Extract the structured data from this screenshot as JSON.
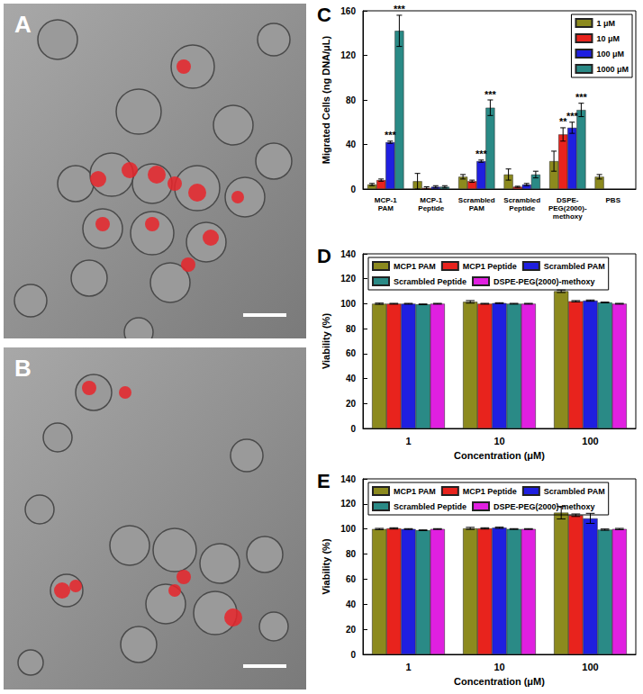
{
  "images": [
    {
      "panel": "A"
    },
    {
      "panel": "B"
    }
  ],
  "chart_data": [
    {
      "type": "bar",
      "panel": "C",
      "ylabel": "Migrated Cells (ng DNA/μL)",
      "categories": [
        "MCP-1\nPAM",
        "MCP-1\nPeptide",
        "Scrambled\nPAM",
        "Scrambled\nPeptide",
        "DSPE-\nPEG(2000)-\nmethoxy",
        "PBS"
      ],
      "series": [
        {
          "name": "1 μM",
          "color": "#8c8a1e",
          "values": [
            4,
            7,
            11,
            13,
            25,
            11
          ],
          "errors": [
            1,
            7,
            2,
            5,
            9,
            2
          ],
          "significance": [
            null,
            null,
            null,
            null,
            null,
            null
          ]
        },
        {
          "name": "10 μM",
          "color": "#e8231d",
          "values": [
            8,
            1,
            7,
            2,
            49,
            null
          ],
          "errors": [
            1,
            1,
            1,
            0.5,
            6,
            null
          ],
          "significance": [
            null,
            null,
            null,
            null,
            "**",
            null
          ]
        },
        {
          "name": "100 μM",
          "color": "#1f1fe0",
          "values": [
            42,
            2,
            25,
            4,
            55,
            null
          ],
          "errors": [
            1,
            1,
            1,
            1,
            5,
            null
          ],
          "significance": [
            "***",
            null,
            "***",
            null,
            "***",
            null
          ]
        },
        {
          "name": "1000 μM",
          "color": "#2a8a86",
          "values": [
            142,
            2,
            73,
            13,
            71,
            null
          ],
          "errors": [
            14,
            1,
            7,
            3,
            6,
            null
          ],
          "significance": [
            "***",
            null,
            "***",
            null,
            "***",
            null
          ]
        }
      ],
      "ylim": [
        0,
        160
      ],
      "yticks": [
        0,
        40,
        80,
        120,
        160
      ],
      "grid": false,
      "legend": "upper right"
    },
    {
      "type": "bar",
      "panel": "D",
      "ylabel": "Viability (%)",
      "xlabel": "Concentration (μM)",
      "categories": [
        "1",
        "10",
        "100"
      ],
      "series": [
        {
          "name": "MCP1 PAM",
          "color": "#8c8a1e",
          "values": [
            100,
            101.5,
            110
          ],
          "errors": [
            0.5,
            1,
            1
          ]
        },
        {
          "name": "MCP1 Peptide",
          "color": "#e8231d",
          "values": [
            100,
            100,
            102
          ],
          "errors": [
            0.3,
            0.3,
            0.5
          ]
        },
        {
          "name": "Scrambled PAM",
          "color": "#1f1fe0",
          "values": [
            100,
            100.5,
            102.5
          ],
          "errors": [
            0.3,
            0.3,
            0.5
          ]
        },
        {
          "name": "Scrambled Peptide",
          "color": "#2a8a86",
          "values": [
            99.5,
            100,
            101
          ],
          "errors": [
            0.3,
            0.3,
            0.3
          ]
        },
        {
          "name": "DSPE-PEG(2000)-methoxy",
          "color": "#e020e0",
          "values": [
            100,
            100,
            100
          ],
          "errors": [
            0.3,
            0.3,
            0.3
          ]
        }
      ],
      "ylim": [
        0,
        140
      ],
      "yticks": [
        0,
        20,
        40,
        60,
        80,
        100,
        120,
        140
      ],
      "grid": false,
      "legend": "upper center"
    },
    {
      "type": "bar",
      "panel": "E",
      "ylabel": "Viability (%)",
      "xlabel": "Concentration (μM)",
      "categories": [
        "1",
        "10",
        "100"
      ],
      "series": [
        {
          "name": "MCP1 PAM",
          "color": "#8c8a1e",
          "values": [
            100,
            100.5,
            113
          ],
          "errors": [
            0.5,
            0.8,
            5
          ]
        },
        {
          "name": "MCP1 Peptide",
          "color": "#e8231d",
          "values": [
            100.5,
            100.5,
            111
          ],
          "errors": [
            0.5,
            0.5,
            1
          ]
        },
        {
          "name": "Scrambled PAM",
          "color": "#1f1fe0",
          "values": [
            100,
            101,
            108.5
          ],
          "errors": [
            0.3,
            0.5,
            4
          ]
        },
        {
          "name": "Scrambled Peptide",
          "color": "#2a8a86",
          "values": [
            99,
            100,
            99.5
          ],
          "errors": [
            0.3,
            0.3,
            0.5
          ]
        },
        {
          "name": "DSPE-PEG(2000)-methoxy",
          "color": "#e020e0",
          "values": [
            100,
            100,
            100
          ],
          "errors": [
            0.3,
            0.3,
            0.5
          ]
        }
      ],
      "ylim": [
        0,
        140
      ],
      "yticks": [
        0,
        20,
        40,
        60,
        80,
        100,
        120,
        140
      ],
      "grid": false,
      "legend": "upper center"
    }
  ]
}
